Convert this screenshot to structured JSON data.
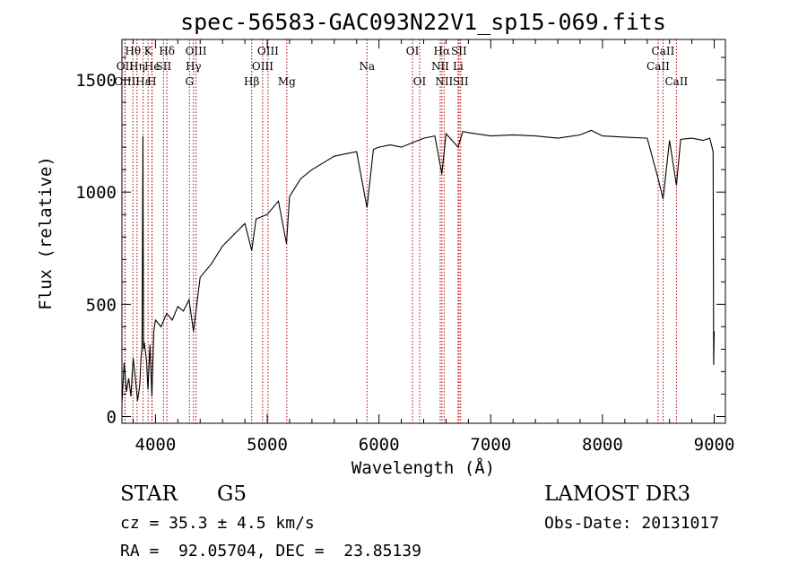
{
  "chart_data": {
    "type": "line",
    "title": "spec-56583-GAC093N22V1_sp15-069.fits",
    "xlabel": "Wavelength (Å)",
    "ylabel": "Flux (relative)",
    "xlim": [
      3700,
      9100
    ],
    "ylim": [
      -30,
      1680
    ],
    "x_ticks": [
      {
        "value": 4000,
        "label": "4000"
      },
      {
        "value": 5000,
        "label": "5000"
      },
      {
        "value": 6000,
        "label": "6000"
      },
      {
        "value": 7000,
        "label": "7000"
      },
      {
        "value": 8000,
        "label": "8000"
      },
      {
        "value": 9000,
        "label": "9000"
      }
    ],
    "y_ticks": [
      {
        "value": 0,
        "label": "0"
      },
      {
        "value": 500,
        "label": "500"
      },
      {
        "value": 1000,
        "label": "1000"
      },
      {
        "value": 1500,
        "label": "1500"
      }
    ],
    "series": [
      {
        "name": "flux",
        "x": [
          3700,
          3720,
          3740,
          3760,
          3780,
          3800,
          3820,
          3840,
          3860,
          3870,
          3880,
          3888,
          3893,
          3900,
          3920,
          3933,
          3950,
          3968,
          3985,
          4000,
          4050,
          4100,
          4150,
          4200,
          4250,
          4300,
          4340,
          4400,
          4500,
          4600,
          4700,
          4800,
          4861,
          4900,
          5000,
          5100,
          5172,
          5200,
          5300,
          5400,
          5500,
          5600,
          5700,
          5800,
          5893,
          5950,
          6000,
          6100,
          6200,
          6300,
          6400,
          6500,
          6563,
          6600,
          6708,
          6750,
          6800,
          7000,
          7200,
          7400,
          7600,
          7800,
          7900,
          8000,
          8200,
          8400,
          8498,
          8542,
          8600,
          8662,
          8700,
          8800,
          8900,
          8960,
          8990,
          8995,
          9000
        ],
        "values": [
          60,
          240,
          110,
          170,
          90,
          260,
          170,
          70,
          140,
          260,
          310,
          1250,
          300,
          330,
          250,
          120,
          320,
          90,
          380,
          430,
          400,
          460,
          430,
          490,
          470,
          520,
          380,
          620,
          680,
          760,
          810,
          860,
          740,
          880,
          900,
          960,
          770,
          980,
          1060,
          1100,
          1130,
          1160,
          1170,
          1180,
          930,
          1190,
          1200,
          1210,
          1200,
          1220,
          1240,
          1250,
          1080,
          1260,
          1200,
          1270,
          1265,
          1250,
          1255,
          1250,
          1240,
          1255,
          1275,
          1250,
          1245,
          1240,
          1060,
          970,
          1230,
          1030,
          1235,
          1240,
          1230,
          1240,
          1180,
          230,
          380
        ]
      }
    ],
    "line_markers": [
      {
        "name": "Hθ",
        "value": 3798,
        "row": 0
      },
      {
        "name": "OII",
        "value": 3727,
        "row": 1
      },
      {
        "name": "OIII",
        "value": 3727,
        "row": 2
      },
      {
        "name": "Hη",
        "value": 3835,
        "row": 1
      },
      {
        "name": "Hε",
        "value": 3889,
        "row": 2
      },
      {
        "name": "K",
        "value": 3934,
        "row": 0
      },
      {
        "name": "He",
        "value": 3970,
        "row": 1
      },
      {
        "name": "H",
        "value": 3968,
        "row": 2
      },
      {
        "name": "Hδ",
        "value": 4102,
        "row": 0
      },
      {
        "name": "SII",
        "value": 4072,
        "row": 1
      },
      {
        "name": "OIII",
        "value": 4363,
        "row": 0
      },
      {
        "name": "Hγ",
        "value": 4340,
        "row": 1
      },
      {
        "name": "G",
        "value": 4304,
        "row": 2
      },
      {
        "name": "Hβ",
        "value": 4861,
        "row": 2
      },
      {
        "name": "OIII",
        "value": 4959,
        "row": 1
      },
      {
        "name": "OIII",
        "value": 5007,
        "row": 0
      },
      {
        "name": "Mg",
        "value": 5175,
        "row": 2
      },
      {
        "name": "Na",
        "value": 5893,
        "row": 1
      },
      {
        "name": "OI",
        "value": 6300,
        "row": 0
      },
      {
        "name": "OI",
        "value": 6364,
        "row": 2
      },
      {
        "name": "Hα",
        "value": 6563,
        "row": 0
      },
      {
        "name": "NII",
        "value": 6548,
        "row": 1
      },
      {
        "name": "NII",
        "value": 6583,
        "row": 2
      },
      {
        "name": "SII",
        "value": 6716,
        "row": 0
      },
      {
        "name": "Li",
        "value": 6708,
        "row": 1
      },
      {
        "name": "SII",
        "value": 6731,
        "row": 2
      },
      {
        "name": "CaII",
        "value": 8542,
        "row": 0
      },
      {
        "name": "CaII",
        "value": 8498,
        "row": 1
      },
      {
        "name": "CaII",
        "value": 8662,
        "row": 2
      }
    ]
  },
  "info": {
    "object_class": "STAR",
    "subclass": "G5",
    "survey": "LAMOST DR3",
    "cz": "cz = 35.3 ± 4.5 km/s",
    "obs_date": "Obs-Date: 20131017",
    "coords": "RA =  92.05704, DEC =  23.85139"
  },
  "colors": {
    "spectrum": "#000000",
    "marker_line": "#b30000",
    "axis": "#000000",
    "background": "#ffffff"
  }
}
